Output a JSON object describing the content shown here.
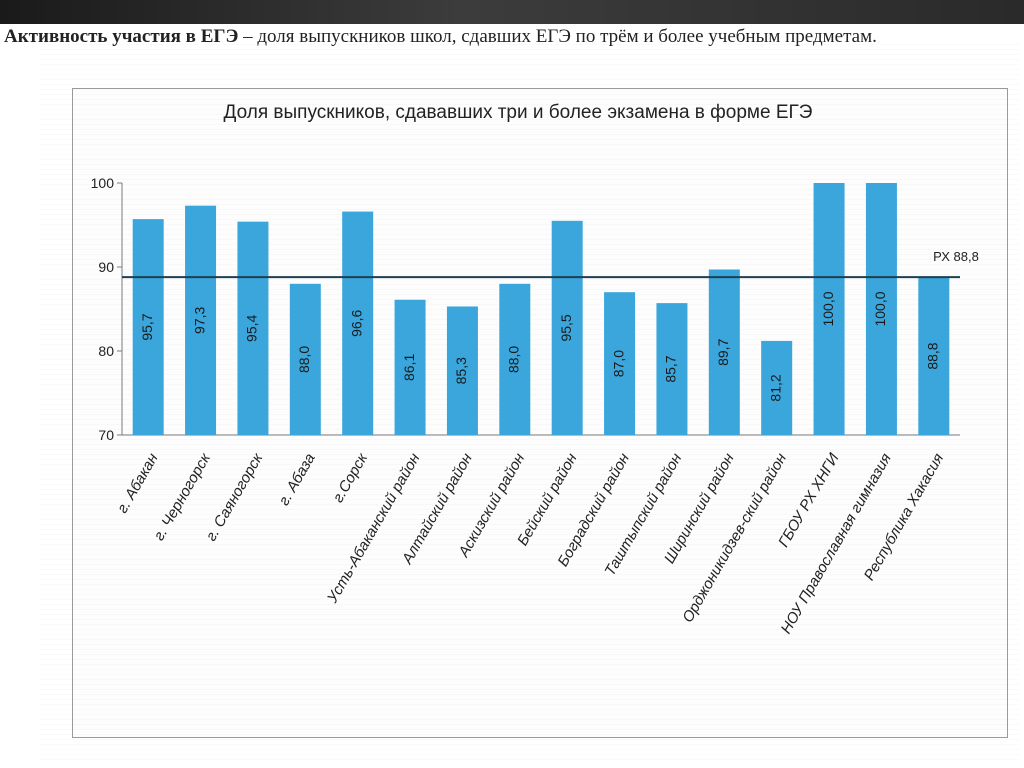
{
  "page": {
    "heading_bold": "Активность участия в ЕГЭ",
    "heading_rest": " – доля выпускников школ, сдавших ЕГЭ по трём и более учебным предметам."
  },
  "colors": {
    "bar": "#3aa6dc",
    "line": "#1f3f4f",
    "axis": "#7a7a7a",
    "text": "#222222",
    "bar_label": "#1a1a1a"
  },
  "chart_data": {
    "type": "bar",
    "title": "Доля выпускников, сдававших три и более экзамена в форме ЕГЭ",
    "categories": [
      "г. Абакан",
      "г. Черногорск",
      "г. Саяногорск",
      "г. Абаза",
      "г.Сорск",
      "Усть-Абаканский район",
      "Алтайский район",
      "Аскизский район",
      "Бейский район",
      "Боградский район",
      "Таштыпский район",
      "Ширинский район",
      "Орджоникидзев-ский район",
      "ГБОУ РХ ХНГИ",
      "НОУ Православная гимназия",
      "Республика Хакасия"
    ],
    "values": [
      95.7,
      97.3,
      95.4,
      88.0,
      96.6,
      86.1,
      85.3,
      88.0,
      95.5,
      87.0,
      85.7,
      89.7,
      81.2,
      100.0,
      100.0,
      88.8
    ],
    "value_labels": [
      "95,7",
      "97,3",
      "95,4",
      "88,0",
      "96,6",
      "86,1",
      "85,3",
      "88,0",
      "95,5",
      "87,0",
      "85,7",
      "89,7",
      "81,2",
      "100,0",
      "100,0",
      "88,8"
    ],
    "ylim": [
      70,
      100
    ],
    "yticks": [
      70,
      80,
      90,
      100
    ],
    "reference": {
      "value": 88.8,
      "label": "РХ 88,8"
    },
    "xlabel": "",
    "ylabel": "",
    "grid": false,
    "legend": "none"
  }
}
